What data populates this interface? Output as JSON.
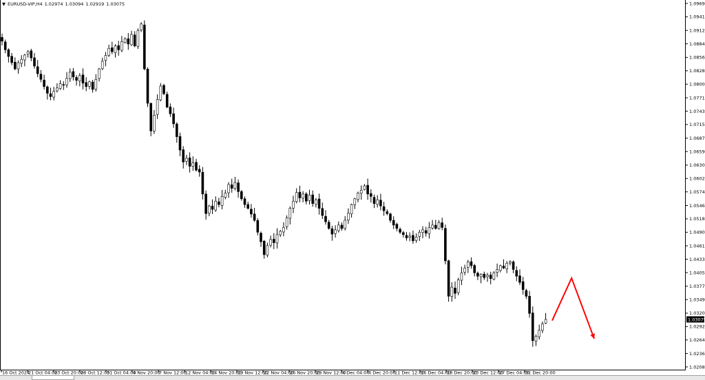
{
  "header": {
    "symbol": "EURUSD-VIP,H4",
    "open": "1.02974",
    "high": "1.03094",
    "low": "1.02919",
    "close": "1.03075"
  },
  "chart_data": {
    "type": "candlestick",
    "title": "EURUSD-VIP,H4",
    "ylim": [
      1.0208,
      1.0969
    ],
    "y_ticks": [
      "1.09690",
      "1.09410",
      "1.09125",
      "1.08845",
      "1.08560",
      "1.08280",
      "1.08000",
      "1.07715",
      "1.07435",
      "1.07155",
      "1.06870",
      "1.06590",
      "1.06305",
      "1.06025",
      "1.05745",
      "1.05460",
      "1.05180",
      "1.04900",
      "1.04615",
      "1.04335",
      "1.04055",
      "1.03770",
      "1.03490",
      "1.03205",
      "1.02925",
      "1.02645",
      "1.02360",
      "1.02080"
    ],
    "current_price": "1.03075",
    "x_ticks": [
      "16 Oct 2024",
      "21 Oct 04:00",
      "23 Oct 20:00",
      "28 Oct 12:00",
      "31 Oct 04:00",
      "4 Nov 20:00",
      "7 Nov 12:00",
      "12 Nov 04:00",
      "14 Nov 20:00",
      "19 Nov 12:00",
      "22 Nov 04:00",
      "26 Nov 20:00",
      "29 Nov 12:00",
      "4 Dec 04:00",
      "6 Dec 20:00",
      "11 Dec 12:00",
      "16 Dec 04:00",
      "18 Dec 20:00",
      "23 Dec 12:00",
      "27 Dec 04:00",
      "31 Dec 20:00"
    ],
    "x_tick_every_bars": 8,
    "closes": [
      1.089,
      1.0872,
      1.0858,
      1.0845,
      1.0832,
      1.0845,
      1.0852,
      1.0861,
      1.0868,
      1.0855,
      1.0838,
      1.0822,
      1.081,
      1.0795,
      1.0781,
      1.0774,
      1.0785,
      1.0792,
      1.0801,
      1.0798,
      1.0812,
      1.0825,
      1.0815,
      1.0808,
      1.0818,
      1.0802,
      1.0795,
      1.0805,
      1.0789,
      1.081,
      1.0832,
      1.0848,
      1.086,
      1.0875,
      1.0868,
      1.088,
      1.0872,
      1.0889,
      1.0895,
      1.0884,
      1.0904,
      1.088,
      1.0912,
      1.0926,
      1.0832,
      1.076,
      1.0702,
      1.0735,
      1.0768,
      1.0796,
      1.078,
      1.0752,
      1.0738,
      1.0717,
      1.069,
      1.0662,
      1.0637,
      1.0645,
      1.0628,
      1.0635,
      1.062,
      1.0616,
      1.057,
      1.0529,
      1.0545,
      1.0538,
      1.0555,
      1.0548,
      1.0565,
      1.0572,
      1.059,
      1.0582,
      1.0594,
      1.0575,
      1.056,
      1.0548,
      1.054,
      1.0528,
      1.0515,
      1.049,
      1.047,
      1.0443,
      1.0462,
      1.0475,
      1.0468,
      1.0485,
      1.0492,
      1.05,
      1.052,
      1.054,
      1.0555,
      1.0573,
      1.0562,
      1.057,
      1.0555,
      1.0568,
      1.055,
      1.0558,
      1.054,
      1.0525,
      1.0512,
      1.0498,
      1.0486,
      1.0495,
      1.0505,
      1.0498,
      1.0515,
      1.053,
      1.0548,
      1.056,
      1.0572,
      1.0578,
      1.0587,
      1.057,
      1.0565,
      1.055,
      1.0558,
      1.0545,
      1.0535,
      1.0529,
      1.0515,
      1.0505,
      1.0498,
      1.049,
      1.0485,
      1.0478,
      1.0482,
      1.0472,
      1.048,
      1.049,
      1.0495,
      1.0488,
      1.05,
      1.0505,
      1.0498,
      1.051,
      1.05,
      1.043,
      1.0356,
      1.0375,
      1.0362,
      1.039,
      1.0405,
      1.0415,
      1.0428,
      1.042,
      1.0405,
      1.0398,
      1.0402,
      1.0395,
      1.04,
      1.0393,
      1.0405,
      1.0412,
      1.042,
      1.0415,
      1.0425,
      1.0428,
      1.0412,
      1.0398,
      1.0385,
      1.037,
      1.0356,
      1.032,
      1.0263,
      1.0272,
      1.0285,
      1.0298,
      1.03075
    ],
    "annotation_arrow": {
      "color": "#ff0000",
      "points": [
        [
          170,
          1.0305
        ],
        [
          176,
          1.0394
        ],
        [
          183,
          1.0267
        ]
      ]
    },
    "colors": {
      "candle": "#000000",
      "background": "#ffffff",
      "arrow": "#ff0000"
    }
  }
}
